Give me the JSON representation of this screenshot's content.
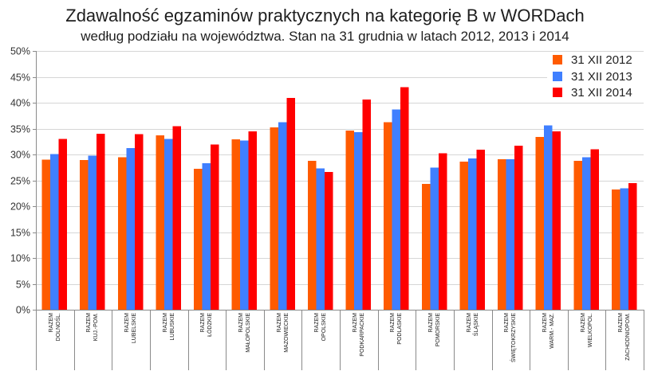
{
  "chart_data": {
    "type": "bar",
    "title": "Zdawalność egzaminów praktycznych na kategorię B w WORDach",
    "subtitle": "według podziału na województwa. Stan na 31 grudnia w latach 2012, 2013 i 2014",
    "ylim": [
      0,
      50
    ],
    "y_tick_labels": [
      "0%",
      "5%",
      "10%",
      "15%",
      "20%",
      "25%",
      "30%",
      "35%",
      "40%",
      "45%",
      "50%"
    ],
    "grid": true,
    "legend_position": "top-right",
    "categories": [
      "RAZEM\nDOLNOŚL.",
      "RAZEM\nKUJ.-POM.",
      "RAZEM\nLUBELSKIE",
      "RAZEM\nLUBUSKIE",
      "RAZEM\nŁÓDZKIE",
      "RAZEM\nMAŁOPOLSKIE",
      "RAZEM\nMAZOWIECKIE",
      "RAZEM\nOPOLSKIE",
      "RAZEM\nPODKARPACKIE",
      "RAZEM\nPODLASKIE",
      "RAZEM\nPOMORSKIE",
      "RAZEM\nŚLĄSKIE",
      "RAZEM\nŚWIĘTOKRZYSKIE",
      "RAZEM\nWARM.- MAZ.",
      "RAZEM\nWIELKOPOL.",
      "RAZEM\nZACHODNIOPOM."
    ],
    "series": [
      {
        "name": "31 XII 2012",
        "color": "#FF5B00",
        "values": [
          29.0,
          28.9,
          29.5,
          33.7,
          27.2,
          32.9,
          35.2,
          28.8,
          34.6,
          36.2,
          24.3,
          28.6,
          29.1,
          33.4,
          28.8,
          23.2
        ]
      },
      {
        "name": "31 XII 2013",
        "color": "#3F7FFF",
        "values": [
          30.1,
          29.8,
          31.2,
          33.0,
          28.3,
          32.7,
          36.2,
          27.3,
          34.3,
          38.7,
          27.5,
          29.2,
          29.1,
          35.6,
          29.5,
          23.5
        ]
      },
      {
        "name": "31 XII 2014",
        "color": "#FF0000",
        "values": [
          33.0,
          34.0,
          33.9,
          35.5,
          31.9,
          34.5,
          40.9,
          26.6,
          40.6,
          43.0,
          30.2,
          30.9,
          31.7,
          34.5,
          31.0,
          24.5
        ]
      }
    ]
  }
}
